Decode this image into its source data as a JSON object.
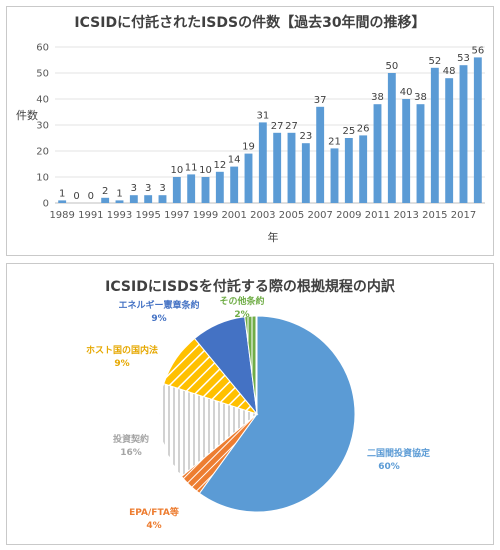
{
  "chart_data": [
    {
      "type": "bar",
      "title": "ICSIDに付託されたISDSの件数【過去30年間の推移】",
      "xlabel": "年",
      "ylabel": "件数",
      "ylim": [
        0,
        60
      ],
      "yticks": [
        0,
        10,
        20,
        30,
        40,
        50,
        60
      ],
      "grid": true,
      "categories": [
        "1989",
        "1990",
        "1991",
        "1992",
        "1993",
        "1994",
        "1995",
        "1996",
        "1997",
        "1998",
        "1999",
        "2000",
        "2001",
        "2002",
        "2003",
        "2004",
        "2005",
        "2006",
        "2007",
        "2008",
        "2009",
        "2010",
        "2011",
        "2012",
        "2013",
        "2014",
        "2015",
        "2016",
        "2017",
        "2018"
      ],
      "xtick_labels": [
        "1989",
        "1991",
        "1993",
        "1995",
        "1997",
        "1999",
        "2001",
        "2003",
        "2005",
        "2007",
        "2009",
        "2011",
        "2013",
        "2015",
        "2017"
      ],
      "values": [
        1,
        0,
        0,
        2,
        1,
        3,
        3,
        3,
        10,
        11,
        10,
        12,
        14,
        19,
        31,
        27,
        27,
        23,
        37,
        21,
        25,
        26,
        38,
        50,
        40,
        38,
        52,
        48,
        53,
        56
      ],
      "color": "#5b9bd5"
    },
    {
      "type": "pie",
      "title": "ICSIDにISDSを付託する際の根拠規程の内訳",
      "slices": [
        {
          "label": "二国間投資協定",
          "value": 60,
          "pct": "60%",
          "color": "#5b9bd5"
        },
        {
          "label": "EPA/FTA等",
          "value": 4,
          "pct": "4%",
          "color": "#ed7d31"
        },
        {
          "label": "投資契約",
          "value": 16,
          "pct": "16%",
          "color": "#a5a5a5"
        },
        {
          "label": "ホスト国の国内法",
          "value": 9,
          "pct": "9%",
          "color": "#ffc000"
        },
        {
          "label": "エネルギー憲章条約",
          "value": 9,
          "pct": "9%",
          "color": "#4472c4"
        },
        {
          "label": "その他条約",
          "value": 2,
          "pct": "2%",
          "color": "#70ad47"
        }
      ]
    }
  ]
}
